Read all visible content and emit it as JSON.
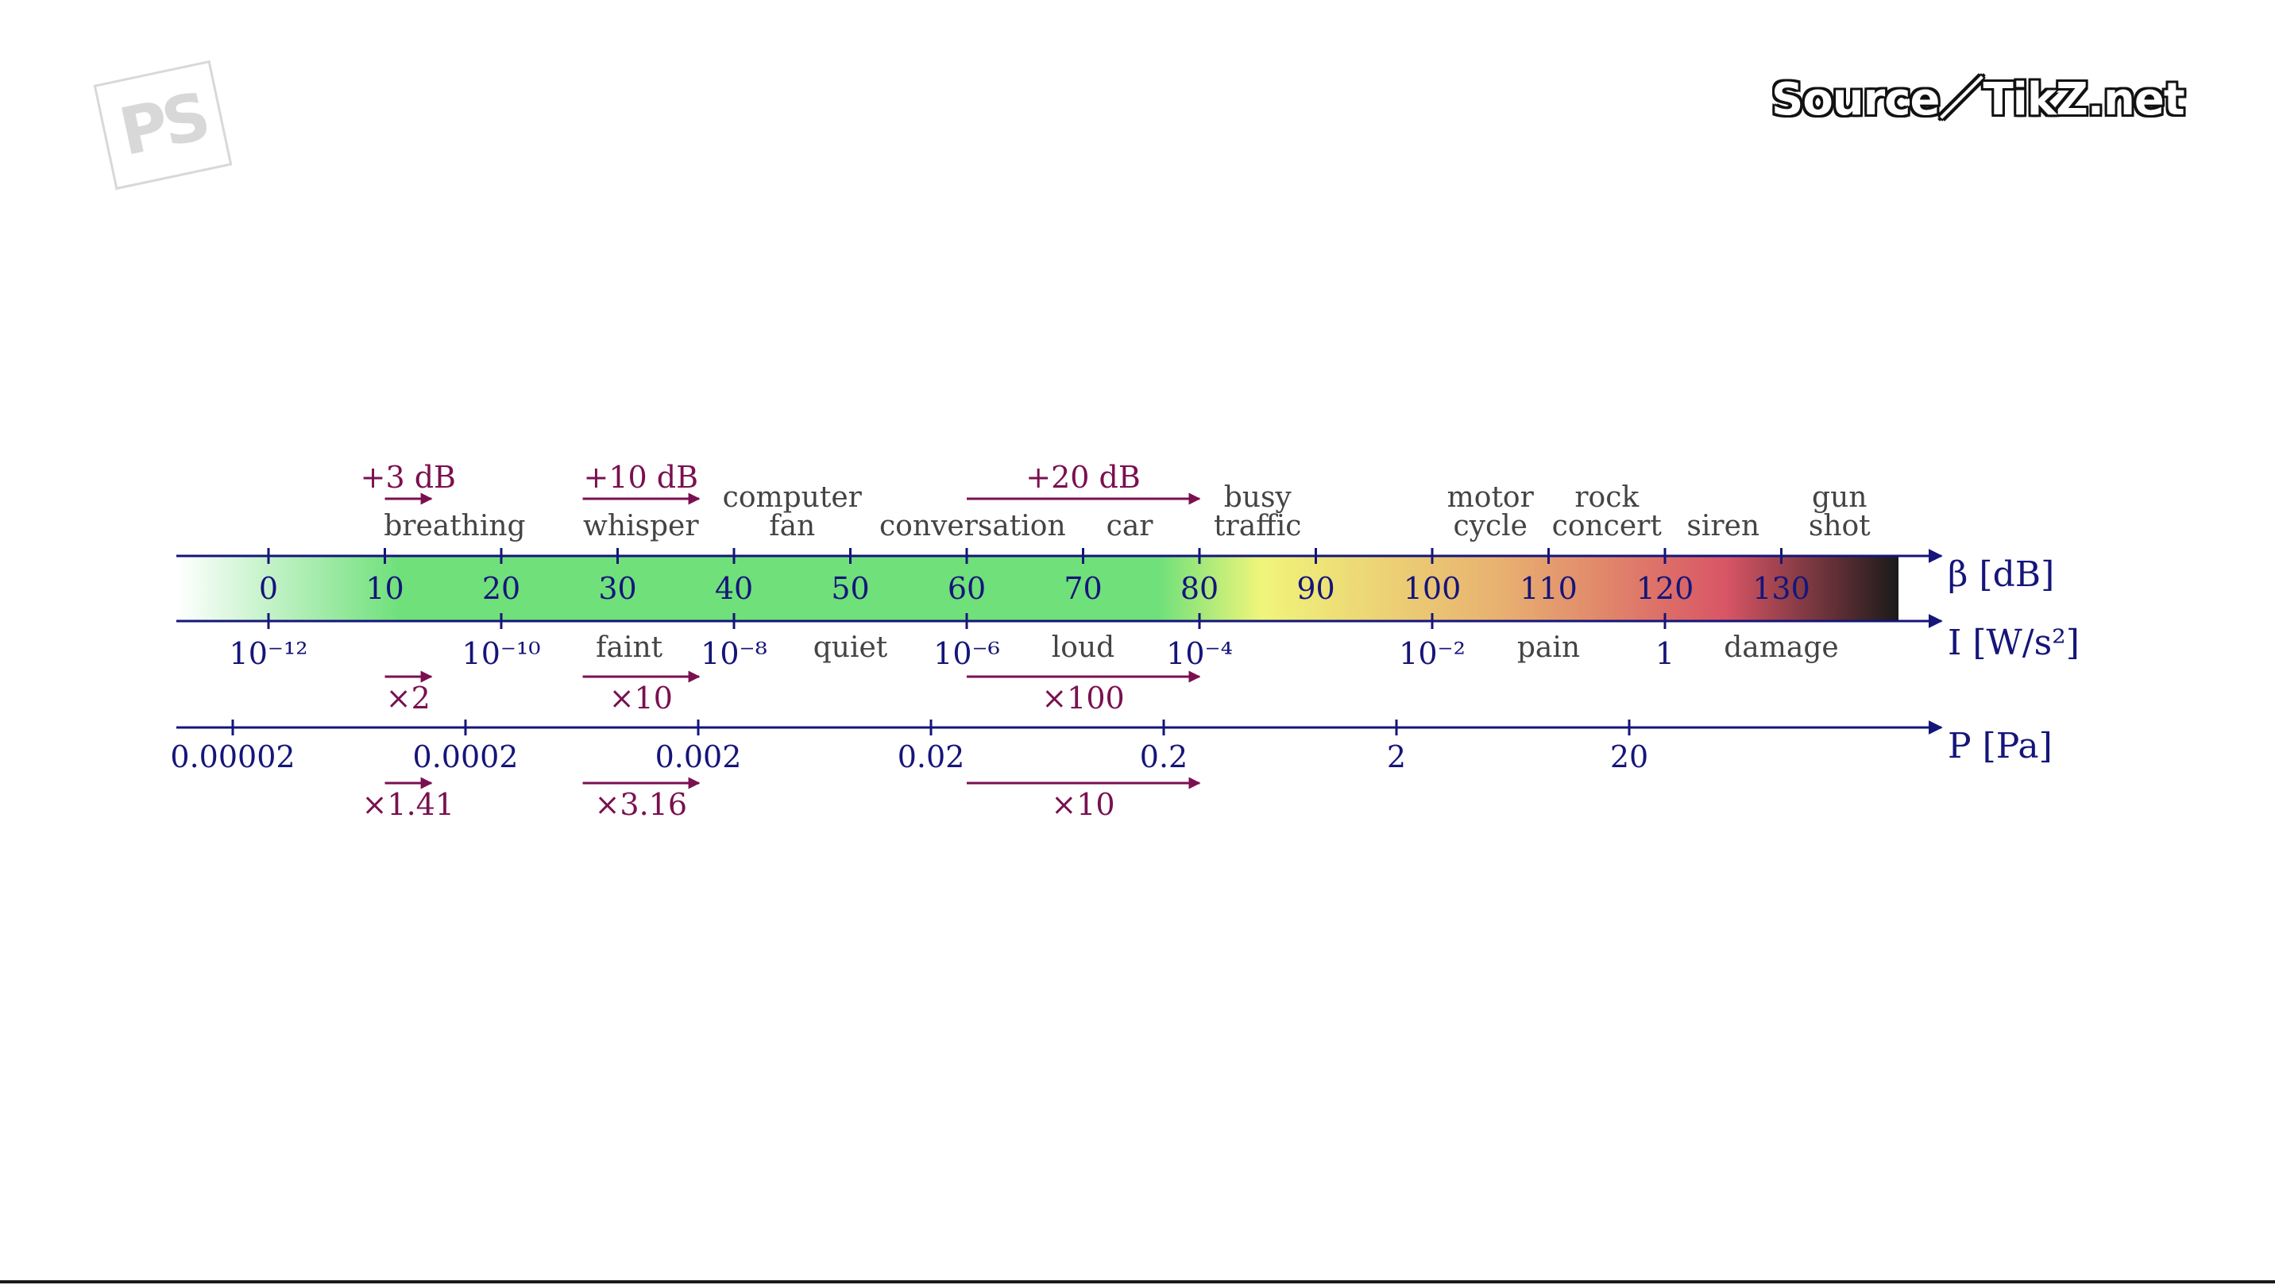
{
  "watermark": {
    "logo_text": "PS",
    "source_text": "Source／TikZ.net"
  },
  "colors": {
    "axis": "#15157a",
    "accent": "#7a1050",
    "label": "#444444",
    "gradient": [
      "#ffffff",
      "#6fe07a",
      "#6fe07a",
      "#f0f57a",
      "#e8b070",
      "#d85565",
      "#1a1a1a"
    ]
  },
  "axes": {
    "db": {
      "label": "β [dB]",
      "ticks": [
        "0",
        "10",
        "20",
        "30",
        "40",
        "50",
        "60",
        "70",
        "80",
        "90",
        "100",
        "110",
        "120",
        "130"
      ]
    },
    "intensity": {
      "label": "I [W/s²]",
      "ticks": [
        {
          "db": 0,
          "text": "10⁻¹²"
        },
        {
          "db": 20,
          "text": "10⁻¹⁰"
        },
        {
          "db": 40,
          "text": "10⁻⁸"
        },
        {
          "db": 60,
          "text": "10⁻⁶"
        },
        {
          "db": 80,
          "text": "10⁻⁴"
        },
        {
          "db": 100,
          "text": "10⁻²"
        },
        {
          "db": 120,
          "text": "1"
        }
      ]
    },
    "pressure": {
      "label": "P [Pa]",
      "ticks": [
        {
          "db": 0,
          "text": "0.00002"
        },
        {
          "db": 20,
          "text": "0.0002"
        },
        {
          "db": 40,
          "text": "0.002"
        },
        {
          "db": 60,
          "text": "0.02"
        },
        {
          "db": 80,
          "text": "0.2"
        },
        {
          "db": 100,
          "text": "2"
        },
        {
          "db": 120,
          "text": "20"
        }
      ]
    }
  },
  "sound_sources": [
    {
      "db": 16,
      "lines": [
        "breathing"
      ]
    },
    {
      "db": 32,
      "lines": [
        "whisper"
      ]
    },
    {
      "db": 45,
      "lines": [
        "computer",
        "fan"
      ]
    },
    {
      "db": 60.5,
      "lines": [
        "conversation"
      ]
    },
    {
      "db": 74,
      "lines": [
        "car"
      ]
    },
    {
      "db": 85,
      "lines": [
        "busy",
        "traffic"
      ]
    },
    {
      "db": 105,
      "lines": [
        "motor",
        "cycle"
      ]
    },
    {
      "db": 115,
      "lines": [
        "rock",
        "concert"
      ]
    },
    {
      "db": 125,
      "lines": [
        "siren"
      ]
    },
    {
      "db": 135,
      "lines": [
        "gun",
        "shot"
      ]
    }
  ],
  "intensity_words": [
    {
      "db": 31,
      "text": "faint"
    },
    {
      "db": 50,
      "text": "quiet"
    },
    {
      "db": 70,
      "text": "loud"
    },
    {
      "db": 110,
      "text": "pain"
    },
    {
      "db": 130,
      "text": "damage"
    }
  ],
  "steps": [
    {
      "row": "db",
      "from": 10,
      "to": 14,
      "text": "+3 dB"
    },
    {
      "row": "db",
      "from": 27,
      "to": 37,
      "text": "+10 dB"
    },
    {
      "row": "db",
      "from": 60,
      "to": 80,
      "text": "+20 dB"
    },
    {
      "row": "intensity",
      "from": 10,
      "to": 14,
      "text": "×2"
    },
    {
      "row": "intensity",
      "from": 27,
      "to": 37,
      "text": "×10"
    },
    {
      "row": "intensity",
      "from": 60,
      "to": 80,
      "text": "×100"
    },
    {
      "row": "pressure",
      "from": 10,
      "to": 14,
      "text": "×1.41"
    },
    {
      "row": "pressure",
      "from": 27,
      "to": 37,
      "text": "×3.16"
    },
    {
      "row": "pressure",
      "from": 60,
      "to": 80,
      "text": "×10"
    }
  ]
}
